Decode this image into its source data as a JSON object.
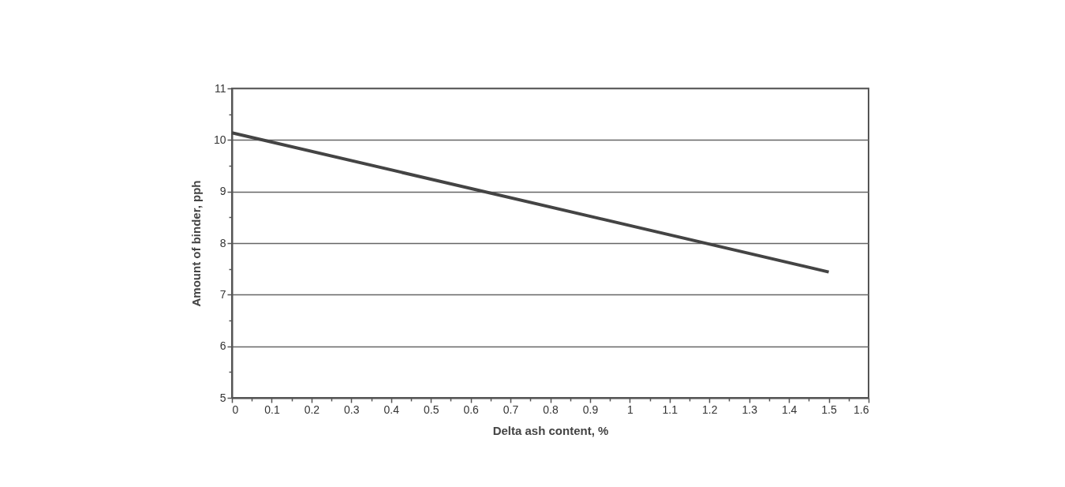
{
  "chart_data": {
    "type": "line",
    "xlabel": "Delta ash content, %",
    "ylabel": "Amount of binder, pph",
    "x": [
      0,
      1.5
    ],
    "series": [
      {
        "color": "#444444",
        "values": [
          10.14,
          7.44
        ]
      }
    ],
    "xlim": [
      0,
      1.6
    ],
    "ylim": [
      5,
      11
    ],
    "xticks": [
      0,
      {
        "value": 0.05,
        "label": null
      },
      0.1,
      {
        "value": 0.15,
        "label": null
      },
      0.2,
      {
        "value": 0.25,
        "label": null
      },
      0.3,
      {
        "value": 0.35,
        "label": null
      },
      0.4,
      {
        "value": 0.45,
        "label": null
      },
      0.5,
      {
        "value": 0.55,
        "label": null
      },
      0.6,
      {
        "value": 0.65,
        "label": null
      },
      0.7,
      {
        "value": 0.75,
        "label": null
      },
      0.8,
      {
        "value": 0.85,
        "label": null
      },
      0.9,
      {
        "value": 0.95,
        "label": null
      },
      1,
      {
        "value": 1.05,
        "label": null
      },
      1.1,
      {
        "value": 1.15,
        "label": null
      },
      1.2,
      {
        "value": 1.25,
        "label": null
      },
      1.3,
      {
        "value": 1.35,
        "label": null
      },
      1.4,
      {
        "value": 1.45,
        "label": null
      },
      1.5,
      {
        "value": 1.55,
        "label": null
      },
      1.6
    ],
    "yticks": [
      5,
      {
        "value": 5.5,
        "label": null
      },
      6,
      {
        "value": 6.5,
        "label": null
      },
      7,
      {
        "value": 7.5,
        "label": null
      },
      8,
      {
        "value": 8.5,
        "label": null
      },
      9,
      {
        "value": 9.5,
        "label": null
      },
      10,
      {
        "value": 10.5,
        "label": null
      },
      11
    ],
    "grid": "y",
    "marker": "none",
    "line_style": "solid"
  }
}
